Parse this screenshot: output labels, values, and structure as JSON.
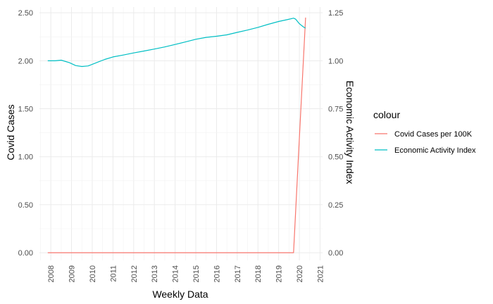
{
  "chart_data": {
    "type": "line",
    "title": "",
    "xlabel": "Weekly Data",
    "ylabel": "Covid Cases",
    "y2label": "Economic Activity Index",
    "xlim": [
      2007.45,
      2021.12
    ],
    "ylim": [
      -0.08,
      2.56
    ],
    "y2lim": [
      -0.04,
      1.28
    ],
    "x_ticks": [
      "2008",
      "2009",
      "2010",
      "2011",
      "2012",
      "2013",
      "2014",
      "2015",
      "2016",
      "2017",
      "2018",
      "2019",
      "2020",
      "2021"
    ],
    "y_ticks": [
      "0.00",
      "0.50",
      "1.00",
      "1.50",
      "2.00",
      "2.50"
    ],
    "y2_ticks": [
      "0.00",
      "0.25",
      "0.50",
      "0.75",
      "1.00",
      "1.25"
    ],
    "grid": true,
    "legend": {
      "title": "colour",
      "position": "right"
    },
    "series": [
      {
        "name": "Covid Cases per 100K",
        "color": "#f8766d",
        "axis": "left",
        "x": [
          2007.85,
          2019.5,
          2019.72,
          2020.0,
          2020.3
        ],
        "y": [
          0.0,
          0.0,
          0.0,
          1.2,
          2.45
        ]
      },
      {
        "name": "Economic Activity Index",
        "color": "#00bfc4",
        "axis": "right",
        "x": [
          2007.85,
          2008.2,
          2008.5,
          2008.9,
          2009.2,
          2009.5,
          2009.8,
          2010.2,
          2010.6,
          2011.0,
          2011.5,
          2012.0,
          2012.5,
          2013.0,
          2013.5,
          2014.0,
          2014.5,
          2015.0,
          2015.5,
          2016.0,
          2016.5,
          2017.0,
          2017.5,
          2018.0,
          2018.5,
          2019.0,
          2019.4,
          2019.72,
          2019.82,
          2020.0,
          2020.2,
          2020.3
        ],
        "y": [
          1.0,
          1.0,
          1.003,
          0.99,
          0.975,
          0.97,
          0.973,
          0.99,
          1.007,
          1.02,
          1.03,
          1.041,
          1.051,
          1.061,
          1.072,
          1.085,
          1.098,
          1.112,
          1.122,
          1.128,
          1.135,
          1.148,
          1.16,
          1.174,
          1.19,
          1.205,
          1.214,
          1.222,
          1.217,
          1.193,
          1.176,
          1.17
        ]
      }
    ]
  }
}
